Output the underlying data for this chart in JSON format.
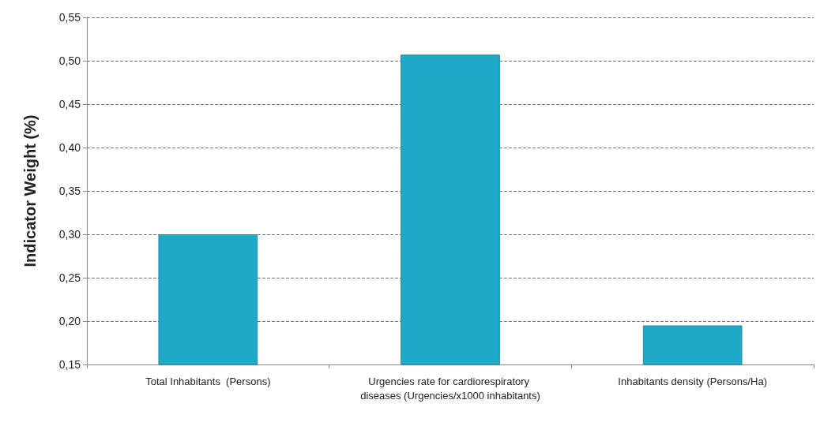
{
  "chart_data": {
    "type": "bar",
    "ylabel": "Indicator Weight (%)",
    "categories": [
      "Total Inhabitants  (Persons)",
      "Urgencies rate for cardiorespiratory diseases (Urgencies/x1000 inhabitants)",
      "Inhabitants density (Persons/Ha)"
    ],
    "values": [
      0.3,
      0.507,
      0.195
    ],
    "color": "#1fa9c9",
    "ylim": [
      0.15,
      0.55
    ],
    "yticks": [
      {
        "value": 0.15,
        "label": "0,15"
      },
      {
        "value": 0.2,
        "label": "0,20"
      },
      {
        "value": 0.25,
        "label": "0,25"
      },
      {
        "value": 0.3,
        "label": "0,30"
      },
      {
        "value": 0.35,
        "label": "0,35"
      },
      {
        "value": 0.4,
        "label": "0,40"
      },
      {
        "value": 0.45,
        "label": "0,45"
      },
      {
        "value": 0.5,
        "label": "0,50"
      },
      {
        "value": 0.55,
        "label": "0,55"
      }
    ],
    "grid": "y"
  }
}
